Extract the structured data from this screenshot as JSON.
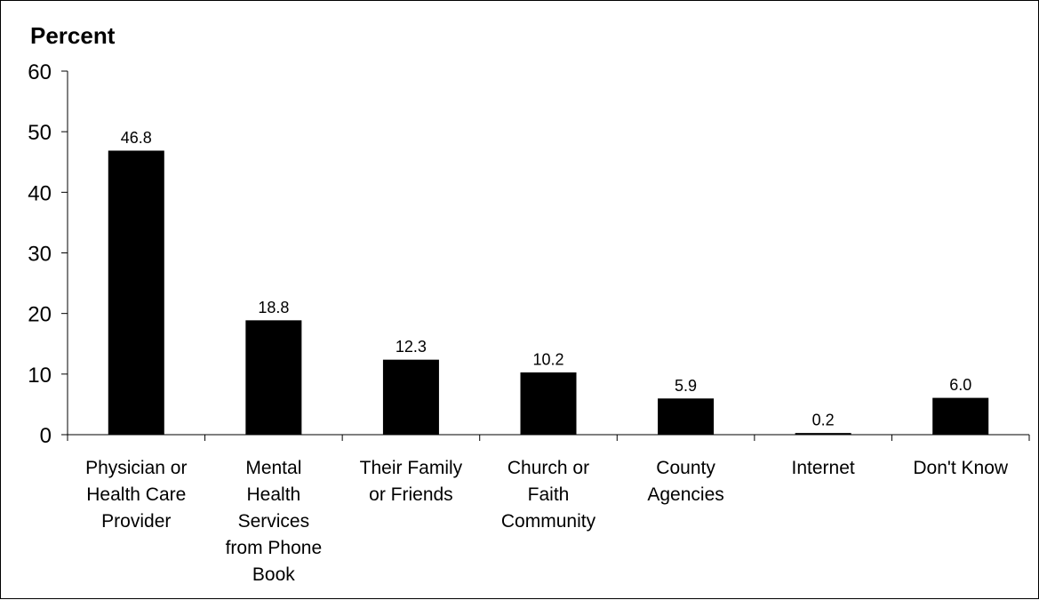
{
  "chart_data": {
    "type": "bar",
    "ylabel": "Percent",
    "xlabel": "",
    "ylim": [
      0,
      60
    ],
    "yticks": [
      0,
      10,
      20,
      30,
      40,
      50,
      60
    ],
    "grid": false,
    "bar_color": "#000000",
    "categories": [
      [
        "Physician or",
        "Health Care",
        "Provider"
      ],
      [
        "Mental",
        "Health",
        "Services",
        "from Phone",
        "Book"
      ],
      [
        "Their Family",
        "or Friends"
      ],
      [
        "Church or",
        "Faith",
        "Community"
      ],
      [
        "County",
        "Agencies"
      ],
      [
        "Internet"
      ],
      [
        "Don't Know"
      ]
    ],
    "values": [
      46.8,
      18.8,
      12.3,
      10.2,
      5.9,
      0.2,
      6.0
    ],
    "data_labels": [
      "46.8",
      "18.8",
      "12.3",
      "10.2",
      "5.9",
      "0.2",
      "6.0"
    ]
  }
}
